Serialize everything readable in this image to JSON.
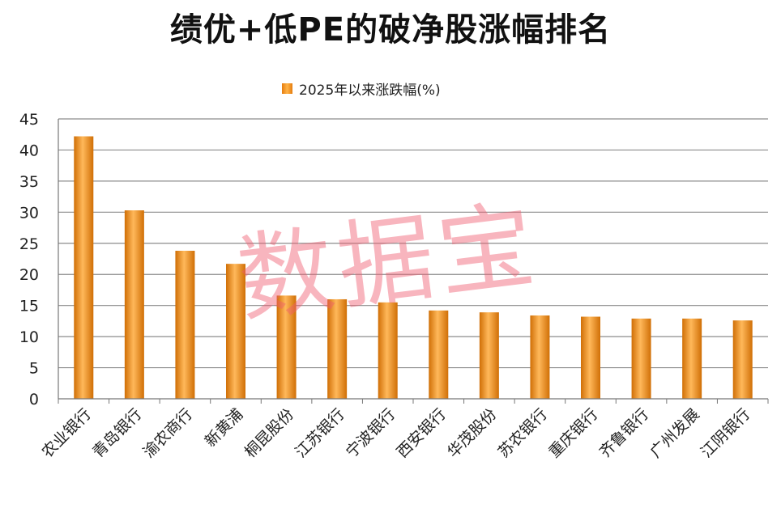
{
  "chart_data": {
    "type": "bar",
    "title": "绩优+低PE的破净股涨幅排名",
    "series": [
      {
        "name": "2025年以来涨跌幅(%)",
        "values": [
          42.2,
          30.3,
          23.8,
          21.7,
          16.6,
          16.0,
          15.5,
          14.2,
          13.9,
          13.4,
          13.2,
          12.9,
          12.9,
          12.6
        ]
      }
    ],
    "categories": [
      "农业银行",
      "青岛银行",
      "渝农商行",
      "新黄浦",
      "桐昆股份",
      "江苏银行",
      "宁波银行",
      "西安银行",
      "华茂股份",
      "苏农银行",
      "重庆银行",
      "齐鲁银行",
      "广州发展",
      "江阴银行"
    ],
    "ylim": [
      0,
      45
    ],
    "yticks": [
      0,
      5,
      10,
      15,
      20,
      25,
      30,
      35,
      40,
      45
    ],
    "grid": true,
    "legend_position": "top-center",
    "colors": {
      "bar": "#f08a18",
      "bar_dark": "#d06f06",
      "bar_light": "#ffb85a",
      "grid": "#8c8c8c"
    }
  },
  "watermark": "数据宝"
}
